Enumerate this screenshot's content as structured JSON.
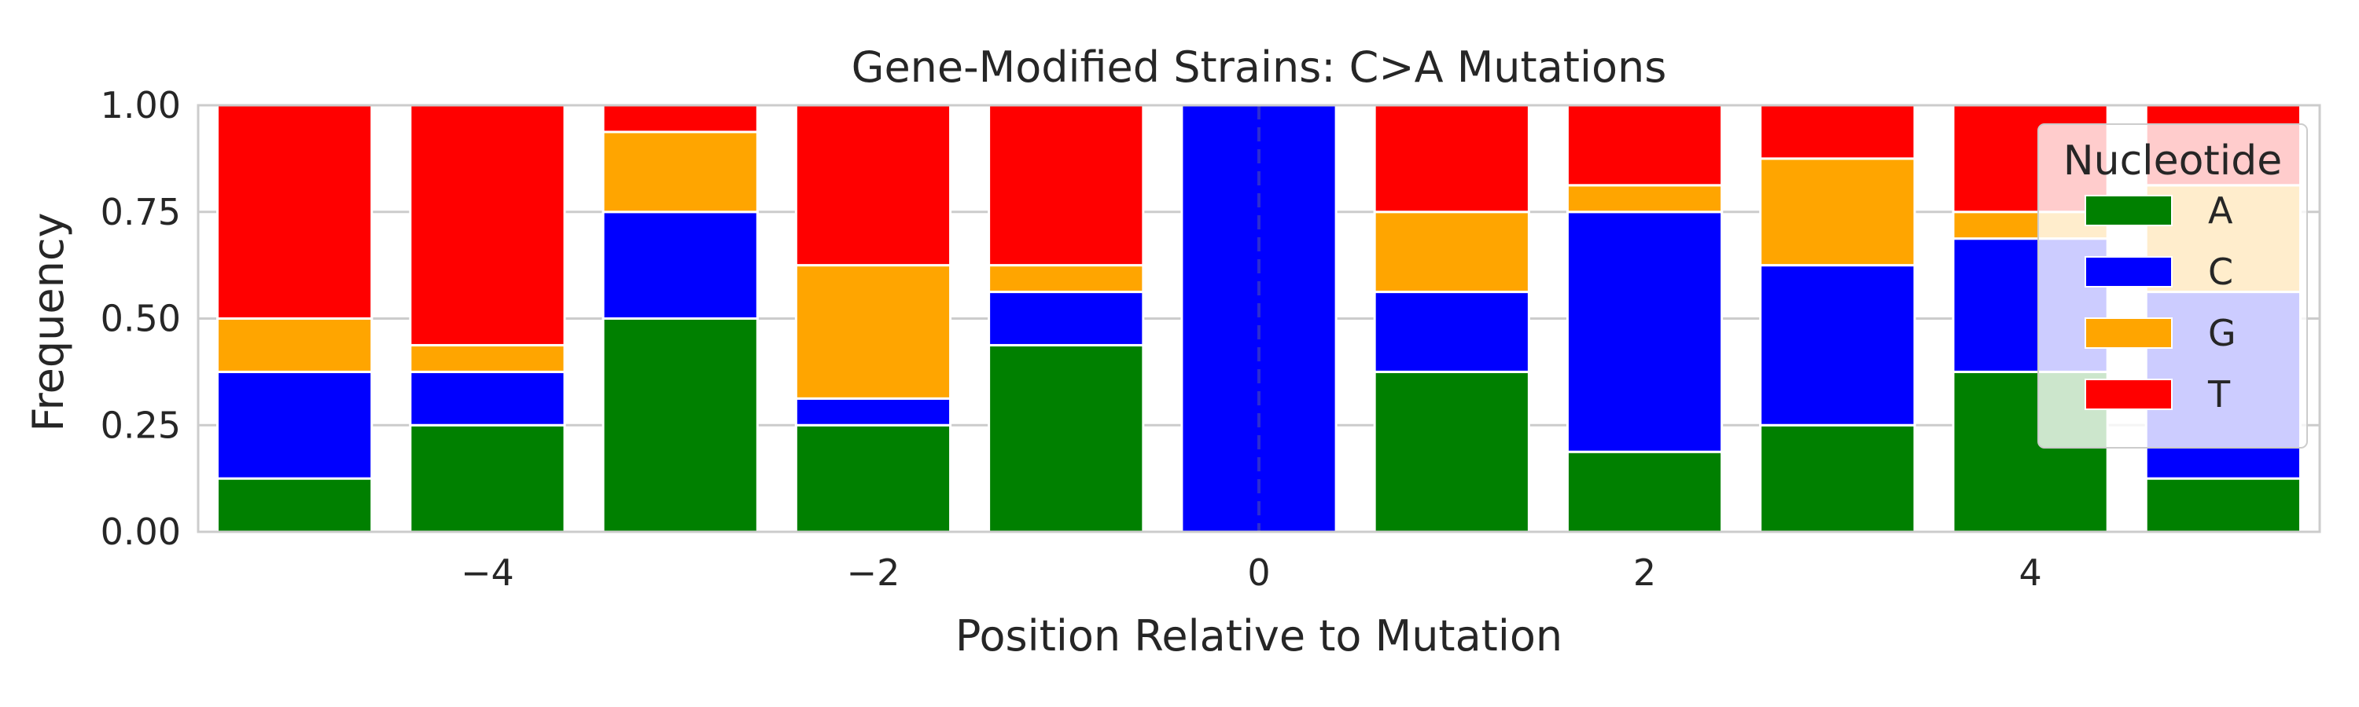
{
  "chart_data": {
    "type": "bar",
    "stacked": true,
    "title": "Gene-Modified Strains: C>A Mutations",
    "xlabel": "Position Relative to Mutation",
    "ylabel": "Frequency",
    "ylim": [
      0,
      1
    ],
    "xlim": [
      -5.5,
      5.5
    ],
    "y_ticks": [
      "0.00",
      "0.25",
      "0.50",
      "0.75",
      "1.00"
    ],
    "x_ticks": [
      "−4",
      "−2",
      "0",
      "2",
      "4"
    ],
    "grid": true,
    "legend_position": "top-right",
    "legend_title": "Nucleotide",
    "mutation_marker_x": 0,
    "categories": [
      -5,
      -4,
      -3,
      -2,
      -1,
      0,
      1,
      2,
      3,
      4,
      5
    ],
    "series": [
      {
        "name": "A",
        "color": "#008000",
        "values": [
          0.125,
          0.25,
          0.5,
          0.25,
          0.4375,
          0,
          0.375,
          0.1875,
          0.25,
          0.375,
          0.125
        ]
      },
      {
        "name": "C",
        "color": "#0000ff",
        "values": [
          0.25,
          0.125,
          0.25,
          0.0625,
          0.125,
          1.0,
          0.1875,
          0.5625,
          0.375,
          0.3125,
          0.4375
        ]
      },
      {
        "name": "G",
        "color": "#ffa500",
        "values": [
          0.125,
          0.0625,
          0.1875,
          0.3125,
          0.0625,
          0,
          0.1875,
          0.0625,
          0.25,
          0.0625,
          0.25
        ]
      },
      {
        "name": "T",
        "color": "#ff0000",
        "values": [
          0.5,
          0.5625,
          0.0625,
          0.375,
          0.375,
          0,
          0.25,
          0.1875,
          0.125,
          0.25,
          0.1875
        ]
      }
    ]
  }
}
